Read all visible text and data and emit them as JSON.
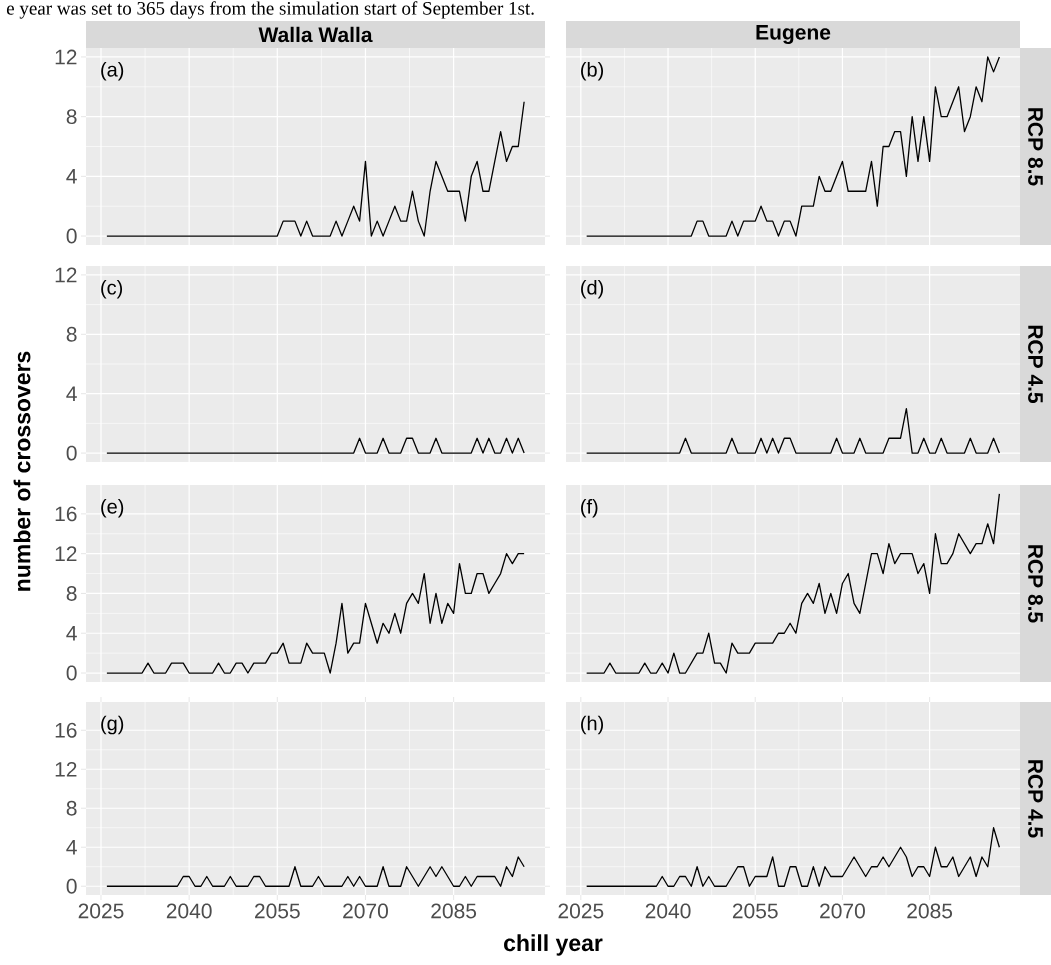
{
  "chart_data": [
    {
      "type": "line",
      "title": "Walla Walla",
      "ylabel": "number of crossovers",
      "annotations": [
        "(a)",
        "e year was set to 365 days from the simulation start of September 1st."
      ],
      "color": "#000000",
      "grid": true,
      "tick_labels": "y",
      "xlim": [
        2022.45,
        2100.55
      ],
      "xticks": [
        2025,
        2040,
        2055,
        2070,
        2085
      ],
      "ylim": [
        -0.6,
        12.6
      ],
      "yticks": [
        0,
        4,
        8,
        12
      ],
      "x": [
        2026,
        2027,
        2028,
        2029,
        2030,
        2031,
        2032,
        2033,
        2034,
        2035,
        2036,
        2037,
        2038,
        2039,
        2040,
        2041,
        2042,
        2043,
        2044,
        2045,
        2046,
        2047,
        2048,
        2049,
        2050,
        2051,
        2052,
        2053,
        2054,
        2055,
        2056,
        2057,
        2058,
        2059,
        2060,
        2061,
        2062,
        2063,
        2064,
        2065,
        2066,
        2067,
        2068,
        2069,
        2070,
        2071,
        2072,
        2073,
        2074,
        2075,
        2076,
        2077,
        2078,
        2079,
        2080,
        2081,
        2082,
        2083,
        2084,
        2085,
        2086,
        2087,
        2088,
        2089,
        2090,
        2091,
        2092,
        2093,
        2094,
        2095,
        2096,
        2097
      ],
      "values": [
        0,
        0,
        0,
        0,
        0,
        0,
        0,
        0,
        0,
        0,
        0,
        0,
        0,
        0,
        0,
        0,
        0,
        0,
        0,
        0,
        0,
        0,
        0,
        0,
        0,
        0,
        0,
        0,
        0,
        0,
        1,
        1,
        1,
        0,
        1,
        0,
        0,
        0,
        0,
        1,
        0,
        1,
        2,
        1,
        5,
        0,
        1,
        0,
        1,
        2,
        1,
        1,
        3,
        1,
        0,
        3,
        5,
        4,
        3,
        3,
        3,
        1,
        4,
        5,
        3,
        3,
        5,
        7,
        5,
        6,
        6,
        9
      ]
    },
    {
      "type": "line",
      "title": "Eugene",
      "y2label": "RCP 8.5",
      "annotations": [
        "(b)"
      ],
      "color": "#000000",
      "grid": true,
      "tick_labels": false,
      "xlim": [
        2022.45,
        2100.55
      ],
      "xticks": [
        2025,
        2040,
        2055,
        2070,
        2085
      ],
      "ylim": [
        -0.6,
        12.6
      ],
      "yticks": [
        0,
        4,
        8,
        12
      ],
      "x": [
        2026,
        2027,
        2028,
        2029,
        2030,
        2031,
        2032,
        2033,
        2034,
        2035,
        2036,
        2037,
        2038,
        2039,
        2040,
        2041,
        2042,
        2043,
        2044,
        2045,
        2046,
        2047,
        2048,
        2049,
        2050,
        2051,
        2052,
        2053,
        2054,
        2055,
        2056,
        2057,
        2058,
        2059,
        2060,
        2061,
        2062,
        2063,
        2064,
        2065,
        2066,
        2067,
        2068,
        2069,
        2070,
        2071,
        2072,
        2073,
        2074,
        2075,
        2076,
        2077,
        2078,
        2079,
        2080,
        2081,
        2082,
        2083,
        2084,
        2085,
        2086,
        2087,
        2088,
        2089,
        2090,
        2091,
        2092,
        2093,
        2094,
        2095,
        2096,
        2097
      ],
      "values": [
        0,
        0,
        0,
        0,
        0,
        0,
        0,
        0,
        0,
        0,
        0,
        0,
        0,
        0,
        0,
        0,
        0,
        0,
        0,
        1,
        1,
        0,
        0,
        0,
        0,
        1,
        0,
        1,
        1,
        1,
        2,
        1,
        1,
        0,
        1,
        1,
        0,
        2,
        2,
        2,
        4,
        3,
        3,
        4,
        5,
        3,
        3,
        3,
        3,
        5,
        2,
        6,
        6,
        7,
        7,
        4,
        8,
        5,
        8,
        5,
        10,
        8,
        8,
        9,
        10,
        7,
        8,
        10,
        9,
        12,
        11,
        12
      ]
    },
    {
      "type": "line",
      "annotations": [
        "(c)"
      ],
      "color": "#000000",
      "grid": true,
      "tick_labels": "y",
      "xlim": [
        2022.45,
        2100.55
      ],
      "xticks": [
        2025,
        2040,
        2055,
        2070,
        2085
      ],
      "ylim": [
        -0.6,
        12.6
      ],
      "yticks": [
        0,
        4,
        8,
        12
      ],
      "x": [
        2026,
        2027,
        2028,
        2029,
        2030,
        2031,
        2032,
        2033,
        2034,
        2035,
        2036,
        2037,
        2038,
        2039,
        2040,
        2041,
        2042,
        2043,
        2044,
        2045,
        2046,
        2047,
        2048,
        2049,
        2050,
        2051,
        2052,
        2053,
        2054,
        2055,
        2056,
        2057,
        2058,
        2059,
        2060,
        2061,
        2062,
        2063,
        2064,
        2065,
        2066,
        2067,
        2068,
        2069,
        2070,
        2071,
        2072,
        2073,
        2074,
        2075,
        2076,
        2077,
        2078,
        2079,
        2080,
        2081,
        2082,
        2083,
        2084,
        2085,
        2086,
        2087,
        2088,
        2089,
        2090,
        2091,
        2092,
        2093,
        2094,
        2095,
        2096,
        2097
      ],
      "values": [
        0,
        0,
        0,
        0,
        0,
        0,
        0,
        0,
        0,
        0,
        0,
        0,
        0,
        0,
        0,
        0,
        0,
        0,
        0,
        0,
        0,
        0,
        0,
        0,
        0,
        0,
        0,
        0,
        0,
        0,
        0,
        0,
        0,
        0,
        0,
        0,
        0,
        0,
        0,
        0,
        0,
        0,
        0,
        1,
        0,
        0,
        0,
        1,
        0,
        0,
        0,
        1,
        1,
        0,
        0,
        0,
        1,
        0,
        0,
        0,
        0,
        0,
        0,
        1,
        0,
        1,
        0,
        0,
        1,
        0,
        1,
        0
      ]
    },
    {
      "type": "line",
      "y2label": "RCP 4.5",
      "annotations": [
        "(d)"
      ],
      "color": "#000000",
      "grid": true,
      "tick_labels": false,
      "xlim": [
        2022.45,
        2100.55
      ],
      "xticks": [
        2025,
        2040,
        2055,
        2070,
        2085
      ],
      "ylim": [
        -0.6,
        12.6
      ],
      "yticks": [
        0,
        4,
        8,
        12
      ],
      "x": [
        2026,
        2027,
        2028,
        2029,
        2030,
        2031,
        2032,
        2033,
        2034,
        2035,
        2036,
        2037,
        2038,
        2039,
        2040,
        2041,
        2042,
        2043,
        2044,
        2045,
        2046,
        2047,
        2048,
        2049,
        2050,
        2051,
        2052,
        2053,
        2054,
        2055,
        2056,
        2057,
        2058,
        2059,
        2060,
        2061,
        2062,
        2063,
        2064,
        2065,
        2066,
        2067,
        2068,
        2069,
        2070,
        2071,
        2072,
        2073,
        2074,
        2075,
        2076,
        2077,
        2078,
        2079,
        2080,
        2081,
        2082,
        2083,
        2084,
        2085,
        2086,
        2087,
        2088,
        2089,
        2090,
        2091,
        2092,
        2093,
        2094,
        2095,
        2096,
        2097
      ],
      "values": [
        0,
        0,
        0,
        0,
        0,
        0,
        0,
        0,
        0,
        0,
        0,
        0,
        0,
        0,
        0,
        0,
        0,
        1,
        0,
        0,
        0,
        0,
        0,
        0,
        0,
        1,
        0,
        0,
        0,
        0,
        1,
        0,
        1,
        0,
        1,
        1,
        0,
        0,
        0,
        0,
        0,
        0,
        0,
        1,
        0,
        0,
        0,
        1,
        0,
        0,
        0,
        0,
        1,
        1,
        1,
        3,
        0,
        0,
        1,
        0,
        0,
        1,
        0,
        0,
        0,
        0,
        1,
        0,
        0,
        0,
        1,
        0
      ]
    },
    {
      "type": "line",
      "annotations": [
        "(e)"
      ],
      "color": "#000000",
      "grid": true,
      "tick_labels": "y",
      "xlim": [
        2022.45,
        2100.55
      ],
      "xticks": [
        2025,
        2040,
        2055,
        2070,
        2085
      ],
      "ylim": [
        -0.9,
        18.9
      ],
      "yticks": [
        0,
        4,
        8,
        12,
        16
      ],
      "x": [
        2026,
        2027,
        2028,
        2029,
        2030,
        2031,
        2032,
        2033,
        2034,
        2035,
        2036,
        2037,
        2038,
        2039,
        2040,
        2041,
        2042,
        2043,
        2044,
        2045,
        2046,
        2047,
        2048,
        2049,
        2050,
        2051,
        2052,
        2053,
        2054,
        2055,
        2056,
        2057,
        2058,
        2059,
        2060,
        2061,
        2062,
        2063,
        2064,
        2065,
        2066,
        2067,
        2068,
        2069,
        2070,
        2071,
        2072,
        2073,
        2074,
        2075,
        2076,
        2077,
        2078,
        2079,
        2080,
        2081,
        2082,
        2083,
        2084,
        2085,
        2086,
        2087,
        2088,
        2089,
        2090,
        2091,
        2092,
        2093,
        2094,
        2095,
        2096,
        2097
      ],
      "values": [
        0,
        0,
        0,
        0,
        0,
        0,
        0,
        1,
        0,
        0,
        0,
        1,
        1,
        1,
        0,
        0,
        0,
        0,
        0,
        1,
        0,
        0,
        1,
        1,
        0,
        1,
        1,
        1,
        2,
        2,
        3,
        1,
        1,
        1,
        3,
        2,
        2,
        2,
        0,
        3,
        7,
        2,
        3,
        3,
        7,
        5,
        3,
        5,
        4,
        6,
        4,
        7,
        8,
        7,
        10,
        5,
        8,
        5,
        7,
        6,
        11,
        8,
        8,
        10,
        10,
        8,
        9,
        10,
        12,
        11,
        12,
        12
      ]
    },
    {
      "type": "line",
      "y2label": "RCP 8.5",
      "annotations": [
        "(f)"
      ],
      "color": "#000000",
      "grid": true,
      "tick_labels": false,
      "xlim": [
        2022.45,
        2100.55
      ],
      "xticks": [
        2025,
        2040,
        2055,
        2070,
        2085
      ],
      "ylim": [
        -0.9,
        18.9
      ],
      "yticks": [
        0,
        4,
        8,
        12,
        16
      ],
      "x": [
        2026,
        2027,
        2028,
        2029,
        2030,
        2031,
        2032,
        2033,
        2034,
        2035,
        2036,
        2037,
        2038,
        2039,
        2040,
        2041,
        2042,
        2043,
        2044,
        2045,
        2046,
        2047,
        2048,
        2049,
        2050,
        2051,
        2052,
        2053,
        2054,
        2055,
        2056,
        2057,
        2058,
        2059,
        2060,
        2061,
        2062,
        2063,
        2064,
        2065,
        2066,
        2067,
        2068,
        2069,
        2070,
        2071,
        2072,
        2073,
        2074,
        2075,
        2076,
        2077,
        2078,
        2079,
        2080,
        2081,
        2082,
        2083,
        2084,
        2085,
        2086,
        2087,
        2088,
        2089,
        2090,
        2091,
        2092,
        2093,
        2094,
        2095,
        2096,
        2097
      ],
      "values": [
        0,
        0,
        0,
        0,
        1,
        0,
        0,
        0,
        0,
        0,
        1,
        0,
        0,
        1,
        0,
        2,
        0,
        0,
        1,
        2,
        2,
        4,
        1,
        1,
        0,
        3,
        2,
        2,
        2,
        3,
        3,
        3,
        3,
        4,
        4,
        5,
        4,
        7,
        8,
        7,
        9,
        6,
        8,
        6,
        9,
        10,
        7,
        6,
        9,
        12,
        12,
        10,
        13,
        11,
        12,
        12,
        12,
        10,
        11,
        8,
        14,
        11,
        11,
        12,
        14,
        13,
        12,
        13,
        13,
        15,
        13,
        18
      ]
    },
    {
      "type": "line",
      "xlabel": "chill year",
      "annotations": [
        "(g)"
      ],
      "color": "#000000",
      "grid": true,
      "xlim": [
        2022.45,
        2100.55
      ],
      "xticks": [
        2025,
        2040,
        2055,
        2070,
        2085
      ],
      "ylim": [
        -0.9,
        18.9
      ],
      "yticks": [
        0,
        4,
        8,
        12,
        16
      ],
      "x": [
        2026,
        2027,
        2028,
        2029,
        2030,
        2031,
        2032,
        2033,
        2034,
        2035,
        2036,
        2037,
        2038,
        2039,
        2040,
        2041,
        2042,
        2043,
        2044,
        2045,
        2046,
        2047,
        2048,
        2049,
        2050,
        2051,
        2052,
        2053,
        2054,
        2055,
        2056,
        2057,
        2058,
        2059,
        2060,
        2061,
        2062,
        2063,
        2064,
        2065,
        2066,
        2067,
        2068,
        2069,
        2070,
        2071,
        2072,
        2073,
        2074,
        2075,
        2076,
        2077,
        2078,
        2079,
        2080,
        2081,
        2082,
        2083,
        2084,
        2085,
        2086,
        2087,
        2088,
        2089,
        2090,
        2091,
        2092,
        2093,
        2094,
        2095,
        2096,
        2097
      ],
      "values": [
        0,
        0,
        0,
        0,
        0,
        0,
        0,
        0,
        0,
        0,
        0,
        0,
        0,
        1,
        1,
        0,
        0,
        1,
        0,
        0,
        0,
        1,
        0,
        0,
        0,
        1,
        1,
        0,
        0,
        0,
        0,
        0,
        2,
        0,
        0,
        0,
        1,
        0,
        0,
        0,
        0,
        1,
        0,
        1,
        0,
        0,
        0,
        2,
        0,
        0,
        0,
        2,
        1,
        0,
        1,
        2,
        1,
        2,
        1,
        0,
        0,
        1,
        0,
        1,
        1,
        1,
        1,
        0,
        2,
        1,
        3,
        2
      ]
    },
    {
      "type": "line",
      "y2label": "RCP 4.5",
      "annotations": [
        "(h)"
      ],
      "color": "#000000",
      "grid": true,
      "tick_labels": "x",
      "xlim": [
        2022.45,
        2100.55
      ],
      "xticks": [
        2025,
        2040,
        2055,
        2070,
        2085
      ],
      "ylim": [
        -0.9,
        18.9
      ],
      "yticks": [
        0,
        4,
        8,
        12,
        16
      ],
      "x": [
        2026,
        2027,
        2028,
        2029,
        2030,
        2031,
        2032,
        2033,
        2034,
        2035,
        2036,
        2037,
        2038,
        2039,
        2040,
        2041,
        2042,
        2043,
        2044,
        2045,
        2046,
        2047,
        2048,
        2049,
        2050,
        2051,
        2052,
        2053,
        2054,
        2055,
        2056,
        2057,
        2058,
        2059,
        2060,
        2061,
        2062,
        2063,
        2064,
        2065,
        2066,
        2067,
        2068,
        2069,
        2070,
        2071,
        2072,
        2073,
        2074,
        2075,
        2076,
        2077,
        2078,
        2079,
        2080,
        2081,
        2082,
        2083,
        2084,
        2085,
        2086,
        2087,
        2088,
        2089,
        2090,
        2091,
        2092,
        2093,
        2094,
        2095,
        2096,
        2097
      ],
      "values": [
        0,
        0,
        0,
        0,
        0,
        0,
        0,
        0,
        0,
        0,
        0,
        0,
        0,
        1,
        0,
        0,
        1,
        1,
        0,
        2,
        0,
        1,
        0,
        0,
        0,
        1,
        2,
        2,
        0,
        1,
        1,
        1,
        3,
        0,
        0,
        2,
        2,
        0,
        0,
        2,
        0,
        2,
        1,
        1,
        1,
        2,
        3,
        2,
        1,
        2,
        2,
        3,
        2,
        3,
        4,
        3,
        1,
        2,
        2,
        1,
        4,
        2,
        2,
        3,
        1,
        2,
        3,
        1,
        3,
        2,
        6,
        4
      ]
    }
  ]
}
